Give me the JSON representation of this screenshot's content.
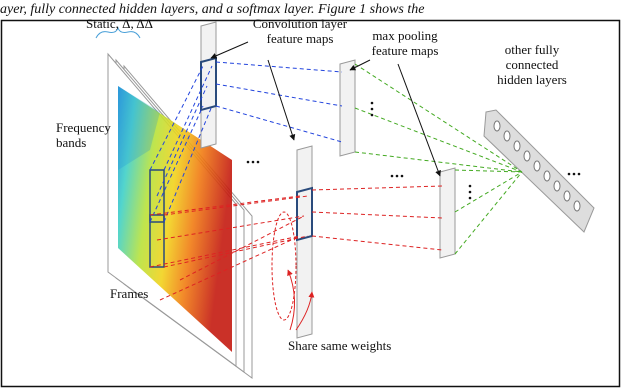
{
  "caption_fragment": "ayer, fully connected hidden layers, and a softmax layer. Figure 1 shows the",
  "labels": {
    "input_channels": [
      "Static, Δ, ΔΔ"
    ],
    "conv_layer": [
      "Convolution layer",
      "feature maps"
    ],
    "pooling_layer": [
      "max pooling",
      "feature maps"
    ],
    "hidden_layers": [
      "other fully",
      "connected",
      "hidden layers"
    ],
    "frequency_axis": [
      "Frequency",
      "bands"
    ],
    "time_axis": [
      "Frames"
    ],
    "weight_sharing": [
      "Share same weights"
    ]
  }
}
